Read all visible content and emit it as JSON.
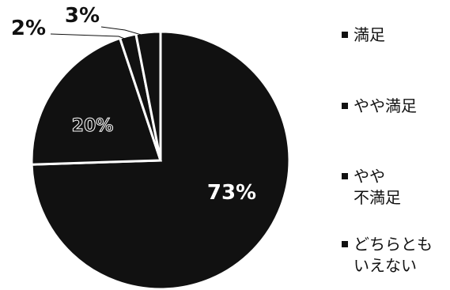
{
  "chart_data": {
    "type": "pie",
    "title": "",
    "slices": [
      {
        "label": "満足",
        "value": 73,
        "display": "73%"
      },
      {
        "label": "やや満足",
        "value": 20,
        "display": "20%"
      },
      {
        "label": "やや\n不満足",
        "value": 2,
        "display": "2%"
      },
      {
        "label": "どちらとも\nいえない",
        "value": 3,
        "display": "3%"
      }
    ],
    "legend_position": "right",
    "colors": {
      "primary": "#111111",
      "separator": "#ffffff",
      "background": "#ffffff"
    }
  }
}
